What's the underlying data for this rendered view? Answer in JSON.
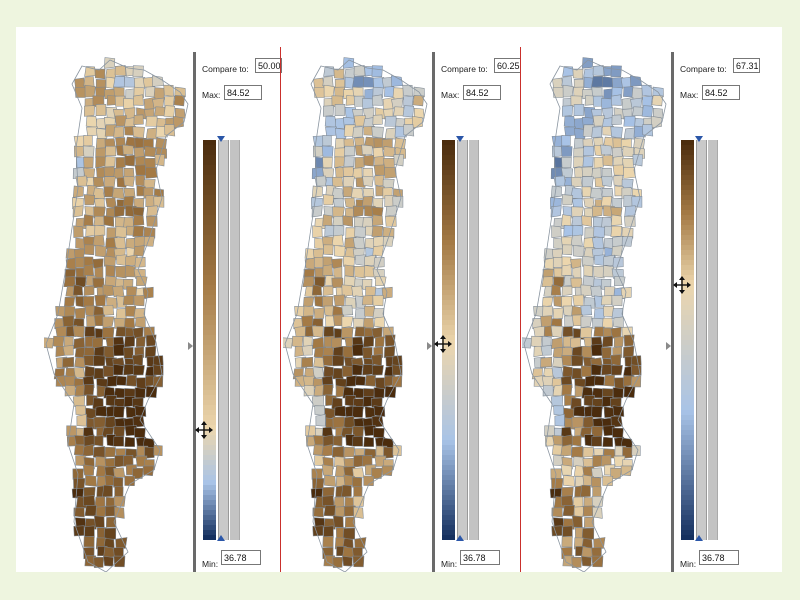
{
  "panels": [
    {
      "compare_label": "Compare to:",
      "compare_value": "50.00",
      "max_label": "Max:",
      "max_value": "84.52",
      "min_label": "Min:",
      "min_value": "36.78",
      "compare_fraction": 0.2766
    },
    {
      "compare_label": "Compare to:",
      "compare_value": "60.25",
      "max_label": "Max:",
      "max_value": "84.52",
      "min_label": "Min:",
      "min_value": "36.78",
      "compare_fraction": 0.4916
    },
    {
      "compare_label": "Compare to:",
      "compare_value": "67.31",
      "max_label": "Max:",
      "max_value": "84.52",
      "min_label": "Min:",
      "min_value": "36.78",
      "compare_fraction": 0.6395
    }
  ],
  "colors": {
    "brown_dark": "#4b2c0d",
    "brown_mid": "#a47a45",
    "cream": "#ecd6ad",
    "blue_light": "#a8c3e7",
    "blue_dark": "#15305f",
    "divider": "#c9302c",
    "background": "#eef5df"
  }
}
